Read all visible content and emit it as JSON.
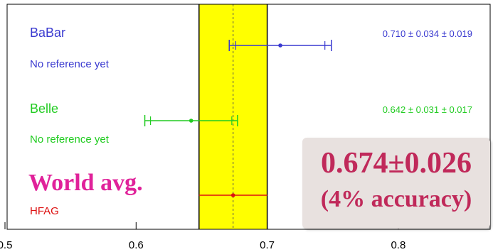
{
  "chart_data": {
    "type": "errorbar",
    "title": "",
    "xlabel": "",
    "xlim": [
      0.5,
      0.85
    ],
    "x_ticks": [
      "0.5",
      "0.6",
      "0.7",
      "0.8"
    ],
    "grid": false,
    "average": {
      "value": 0.674,
      "error": 0.026,
      "band_color": "#ffff00",
      "band_edge_color": "#000000"
    },
    "measurements": [
      {
        "name": "BaBar",
        "reference": "No reference yet",
        "value": 0.71,
        "stat": 0.034,
        "syst": 0.019,
        "value_text": "0.710 ± 0.034 ± 0.019",
        "color": "#3a3ad0",
        "name_style": "normal"
      },
      {
        "name": "Belle",
        "reference": "No reference yet",
        "value": 0.642,
        "stat": 0.031,
        "syst": 0.017,
        "value_text": "0.642 ± 0.031 ± 0.017",
        "color": "#22cc22",
        "name_style": "normal"
      },
      {
        "name": "World avg.",
        "reference": "HFAG",
        "value": 0.674,
        "stat": 0.026,
        "syst": 0,
        "value_text": "",
        "color": "#e0229a",
        "point_color": "#dd1111",
        "name_style": "large-serif"
      }
    ]
  },
  "callout": {
    "line1": "0.674±0.026",
    "line2": "(4% accuracy)",
    "color": "#c0295a",
    "background": "#e8e1df"
  }
}
